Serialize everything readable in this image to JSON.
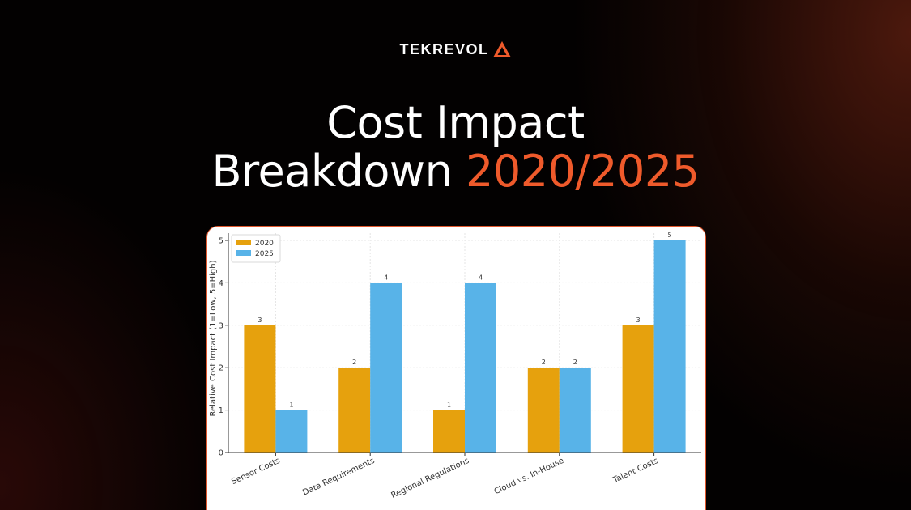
{
  "brand": {
    "name": "TEKREVOL",
    "accent_color": "#ef5a2b"
  },
  "heading": {
    "line1": "Cost Impact",
    "line2_prefix": "Breakdown ",
    "line2_accent": "2020/2025"
  },
  "chart_data": {
    "type": "bar",
    "categories": [
      "Sensor Costs",
      "Data Requirements",
      "Regional Regulations",
      "Cloud vs. In-House",
      "Talent Costs"
    ],
    "series": [
      {
        "name": "2020",
        "values": [
          3,
          2,
          1,
          2,
          3
        ],
        "color": "#e6a10d"
      },
      {
        "name": "2025",
        "values": [
          1,
          4,
          4,
          2,
          5
        ],
        "color": "#58b3e8"
      }
    ],
    "ylabel": "Relative Cost Impact (1=Low, 5=High)",
    "xlabel": "",
    "ylim": [
      0,
      5
    ],
    "yticks": [
      0,
      1,
      2,
      3,
      4,
      5
    ],
    "grid": true,
    "legend": "top-left",
    "data_labels": true
  }
}
